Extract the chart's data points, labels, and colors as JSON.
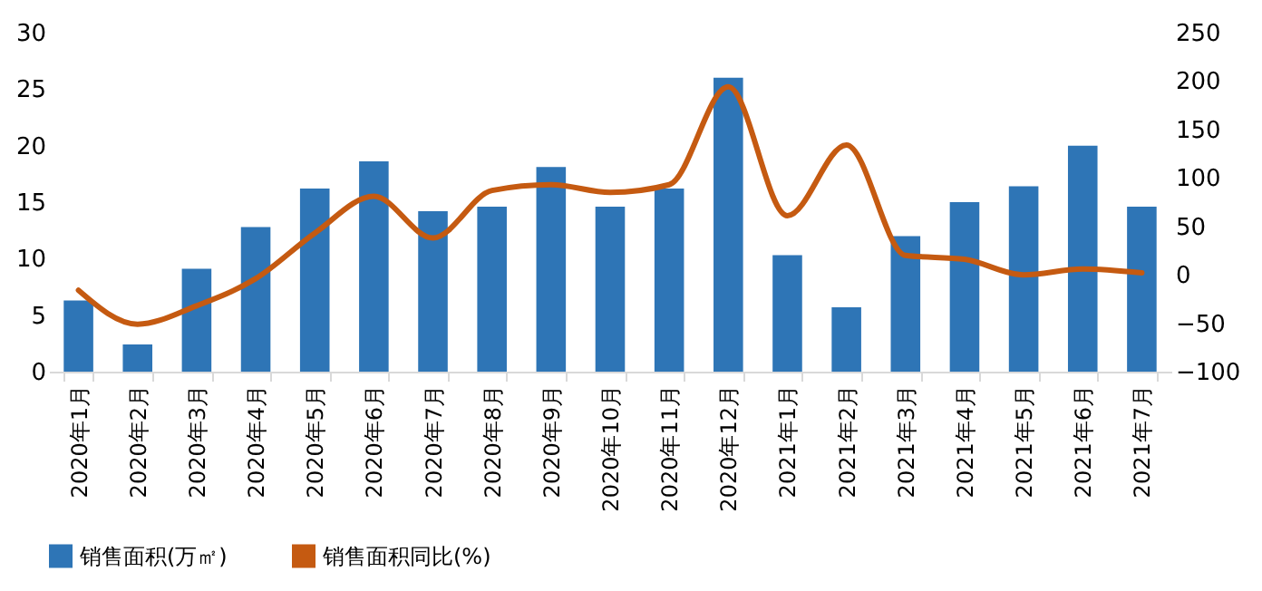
{
  "chart_data": {
    "type": "bar",
    "categories": [
      "2020年1月",
      "2020年2月",
      "2020年3月",
      "2020年4月",
      "2020年5月",
      "2020年6月",
      "2020年7月",
      "2020年8月",
      "2020年9月",
      "2020年10月",
      "2020年11月",
      "2020年12月",
      "2021年1月",
      "2021年2月",
      "2021年3月",
      "2021年4月",
      "2021年5月",
      "2021年6月",
      "2021年7月"
    ],
    "series": [
      {
        "name": "销售面积(万㎡)",
        "color": "#2e75b6",
        "values": [
          6.3,
          2.4,
          9.1,
          12.8,
          16.2,
          18.6,
          14.2,
          14.6,
          18.1,
          14.6,
          16.2,
          26.0,
          10.3,
          5.7,
          12.0,
          15.0,
          16.4,
          20.0,
          14.6
        ]
      },
      {
        "name": "销售面积同比(%)",
        "type": "line",
        "axis": "y2",
        "color": "#c55a11",
        "values": [
          -16,
          -51,
          -32,
          -4,
          43,
          81,
          38,
          87,
          93,
          85,
          93,
          194,
          61,
          134,
          20,
          16,
          0,
          6,
          2
        ]
      }
    ],
    "ylim": [
      0,
      30
    ],
    "yticks": [
      0,
      5,
      10,
      15,
      20,
      25,
      30
    ],
    "y2lim": [
      -100,
      250
    ],
    "y2ticks": [
      -100,
      -50,
      0,
      50,
      100,
      150,
      200,
      250
    ],
    "grid": false,
    "legend": "bottom",
    "marker": "none",
    "line_style": "solid"
  }
}
